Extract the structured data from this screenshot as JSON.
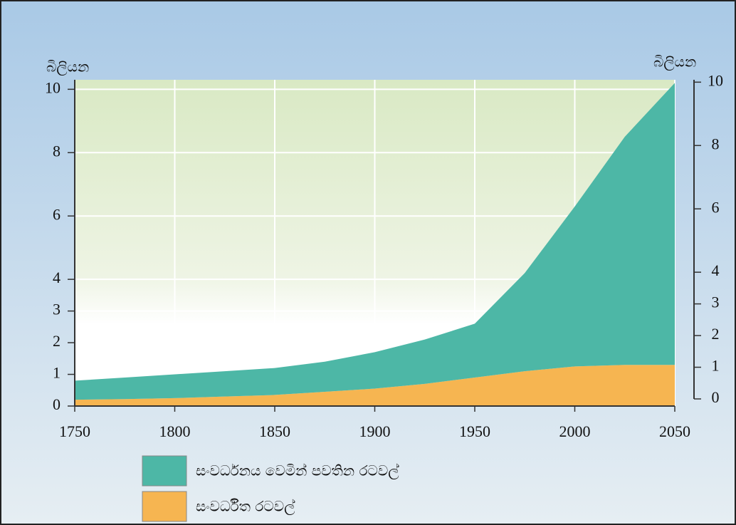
{
  "chart_data": {
    "type": "stacked_area",
    "ylabel": "බිලියන",
    "y2label": "බිලියන",
    "x": [
      1750,
      1775,
      1800,
      1825,
      1850,
      1875,
      1900,
      1925,
      1950,
      1975,
      2000,
      2025,
      2050
    ],
    "series": [
      {
        "name": "සංවර්ධිත රටවල්",
        "color": "#f6b551",
        "values": [
          0.2,
          0.22,
          0.25,
          0.3,
          0.35,
          0.45,
          0.55,
          0.7,
          0.9,
          1.1,
          1.25,
          1.3,
          1.3
        ]
      },
      {
        "name": "සංවර්ධනය වෙමින් පවතින රටවල්",
        "color": "#4db7a6",
        "values": [
          0.6,
          0.68,
          0.75,
          0.8,
          0.85,
          0.95,
          1.15,
          1.4,
          1.7,
          3.1,
          5.05,
          7.2,
          8.9
        ]
      }
    ],
    "xlim": [
      1750,
      2050
    ],
    "xticks": [
      1750,
      1800,
      1850,
      1900,
      1950,
      2000,
      2050
    ],
    "ylim": [
      0,
      10.3
    ],
    "yticks": [
      0,
      1,
      2,
      3,
      4,
      6,
      8,
      10
    ],
    "y2lim": [
      0,
      10.3
    ],
    "y2ticks": [
      0,
      1,
      2,
      3,
      4,
      6,
      8,
      10
    ],
    "grid": true
  }
}
